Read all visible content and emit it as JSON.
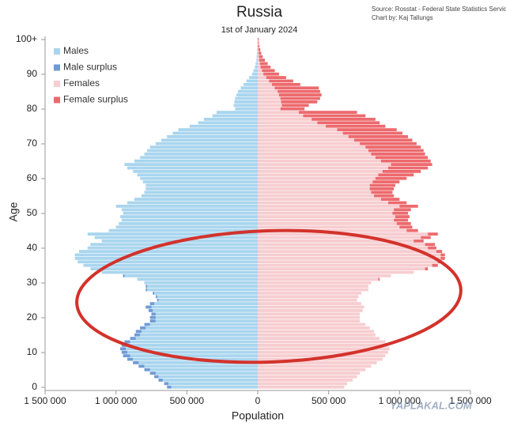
{
  "chart_data": {
    "type": "population-pyramid",
    "title": "Russia",
    "subtitle": "1st of January 2024",
    "source": [
      "Source: Rosstat - Federal State Statistics Service",
      "Chart by: Kaj Tallungs"
    ],
    "watermark": "YAPLAKAL.COM",
    "x_label": "Population",
    "y_label": "Age",
    "categories": [
      "0",
      null,
      null,
      null,
      null,
      null,
      null,
      null,
      null,
      null,
      "10",
      null,
      null,
      null,
      null,
      null,
      null,
      null,
      null,
      null,
      "20",
      null,
      null,
      null,
      null,
      null,
      null,
      null,
      null,
      null,
      "30",
      null,
      null,
      null,
      null,
      null,
      null,
      null,
      null,
      null,
      "40",
      null,
      null,
      null,
      null,
      null,
      null,
      null,
      null,
      null,
      "50",
      null,
      null,
      null,
      null,
      null,
      null,
      null,
      null,
      null,
      "60",
      null,
      null,
      null,
      null,
      null,
      null,
      null,
      null,
      null,
      "70",
      null,
      null,
      null,
      null,
      null,
      null,
      null,
      null,
      null,
      "80",
      null,
      null,
      null,
      null,
      null,
      null,
      null,
      null,
      null,
      "90",
      null,
      null,
      null,
      null,
      null,
      null,
      null,
      null,
      null,
      "100+"
    ],
    "xlim": [
      -1500000,
      1500000
    ],
    "xticks": [
      {
        "value": -1500000,
        "label": "1 500 000"
      },
      {
        "value": -1000000,
        "label": "1 000 000"
      },
      {
        "value": -500000,
        "label": "500 000"
      },
      0,
      {
        "value": 500000,
        "label": "500 000"
      },
      {
        "value": 1000000,
        "label": "1 000 000"
      },
      {
        "value": 1500000,
        "label": "1 500 000"
      }
    ],
    "series": [
      {
        "name": "Males",
        "color": "#a9d5ee",
        "values": [
          610000,
          630000,
          670000,
          700000,
          720000,
          760000,
          800000,
          840000,
          880000,
          900000,
          920000,
          930000,
          920000,
          900000,
          860000,
          830000,
          820000,
          790000,
          760000,
          720000,
          720000,
          720000,
          740000,
          750000,
          730000,
          700000,
          710000,
          730000,
          780000,
          780000,
          800000,
          850000,
          940000,
          1100000,
          1180000,
          1230000,
          1270000,
          1290000,
          1290000,
          1260000,
          1200000,
          1180000,
          1100000,
          1150000,
          1200000,
          1050000,
          1000000,
          980000,
          960000,
          970000,
          950000,
          960000,
          1000000,
          920000,
          870000,
          820000,
          800000,
          790000,
          790000,
          810000,
          830000,
          850000,
          880000,
          920000,
          940000,
          870000,
          830000,
          800000,
          780000,
          760000,
          720000,
          680000,
          640000,
          600000,
          560000,
          480000,
          420000,
          380000,
          320000,
          290000,
          160000,
          170000,
          165000,
          160000,
          150000,
          140000,
          120000,
          100000,
          80000,
          60000,
          40000,
          30000,
          20000,
          15000,
          10000,
          8000,
          6000,
          4000,
          3000,
          2000,
          3000
        ]
      },
      {
        "name": "Male surplus",
        "color": "#6f9bd6",
        "values": [
          30000,
          30000,
          30000,
          30000,
          40000,
          40000,
          40000,
          40000,
          40000,
          50000,
          40000,
          40000,
          40000,
          40000,
          40000,
          40000,
          40000,
          40000,
          40000,
          40000,
          40000,
          30000,
          30000,
          40000,
          30000,
          10000,
          10000,
          10000,
          10000,
          10000,
          0,
          0,
          10000,
          0,
          0,
          0,
          0,
          0,
          0,
          0,
          0,
          0,
          0,
          0,
          0,
          0,
          0,
          0,
          0,
          0,
          0,
          0,
          0,
          0,
          0,
          0,
          0,
          0,
          0,
          0,
          0,
          0,
          0,
          0,
          0,
          0,
          0,
          0,
          0,
          0,
          0,
          0,
          0,
          0,
          0,
          0,
          0,
          0,
          0,
          0,
          0,
          0,
          0,
          0,
          0,
          0,
          0,
          0,
          0,
          0,
          0,
          0,
          0,
          0,
          0,
          0,
          0,
          0,
          0,
          0,
          0
        ]
      },
      {
        "name": "Females",
        "color": "#f7cdd0",
        "values": [
          610000,
          630000,
          670000,
          700000,
          720000,
          760000,
          800000,
          840000,
          880000,
          900000,
          920000,
          930000,
          920000,
          900000,
          860000,
          830000,
          820000,
          790000,
          760000,
          720000,
          720000,
          720000,
          740000,
          750000,
          730000,
          700000,
          710000,
          730000,
          780000,
          780000,
          800000,
          850000,
          940000,
          1100000,
          1180000,
          1230000,
          1270000,
          1290000,
          1290000,
          1260000,
          1200000,
          1180000,
          1100000,
          1150000,
          1200000,
          1050000,
          1000000,
          980000,
          960000,
          970000,
          950000,
          960000,
          1000000,
          920000,
          870000,
          820000,
          800000,
          790000,
          790000,
          810000,
          830000,
          850000,
          880000,
          920000,
          940000,
          870000,
          830000,
          800000,
          780000,
          760000,
          720000,
          680000,
          640000,
          600000,
          560000,
          480000,
          420000,
          380000,
          320000,
          290000,
          160000,
          170000,
          165000,
          160000,
          150000,
          140000,
          120000,
          100000,
          80000,
          60000,
          40000,
          30000,
          20000,
          15000,
          10000,
          8000,
          6000,
          4000,
          3000,
          2000,
          3000
        ]
      },
      {
        "name": "Female surplus",
        "color": "#ec6a6e",
        "values": [
          0,
          0,
          0,
          0,
          0,
          0,
          0,
          0,
          0,
          0,
          0,
          0,
          0,
          0,
          0,
          0,
          0,
          0,
          0,
          0,
          0,
          0,
          0,
          0,
          0,
          0,
          0,
          0,
          0,
          0,
          0,
          10000,
          0,
          0,
          20000,
          40000,
          30000,
          30000,
          30000,
          40000,
          60000,
          70000,
          70000,
          70000,
          70000,
          80000,
          90000,
          100000,
          100000,
          100000,
          110000,
          120000,
          130000,
          130000,
          130000,
          140000,
          150000,
          170000,
          180000,
          190000,
          220000,
          250000,
          270000,
          280000,
          290000,
          350000,
          370000,
          380000,
          390000,
          390000,
          400000,
          410000,
          420000,
          420000,
          420000,
          420000,
          440000,
          450000,
          440000,
          410000,
          170000,
          190000,
          255000,
          280000,
          300000,
          300000,
          310000,
          200000,
          170000,
          140000,
          110000,
          90000,
          70000,
          55000,
          40000,
          27000,
          19000,
          14000,
          9000,
          6000,
          5000
        ]
      }
    ]
  }
}
